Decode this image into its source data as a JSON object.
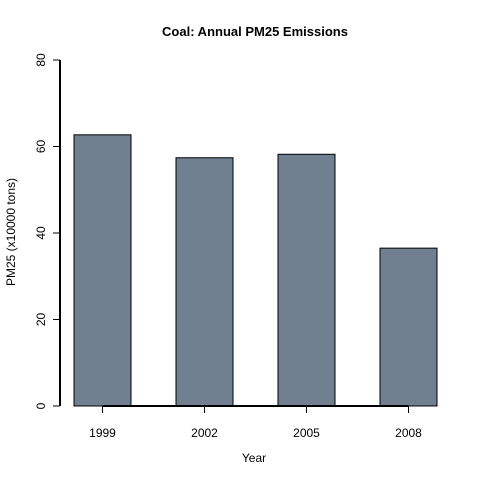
{
  "chart_data": {
    "type": "bar",
    "title": "Coal: Annual PM25 Emissions",
    "xlabel": "Year",
    "ylabel": "PM25 (x10000 tons)",
    "categories": [
      "1999",
      "2002",
      "2005",
      "2008"
    ],
    "values": [
      62.7,
      57.4,
      58.2,
      36.5
    ],
    "ylim": [
      0,
      80
    ],
    "yticks": [
      0,
      20,
      40,
      60,
      80
    ],
    "bar_color": "#708090",
    "grid": false,
    "legend": "none"
  }
}
